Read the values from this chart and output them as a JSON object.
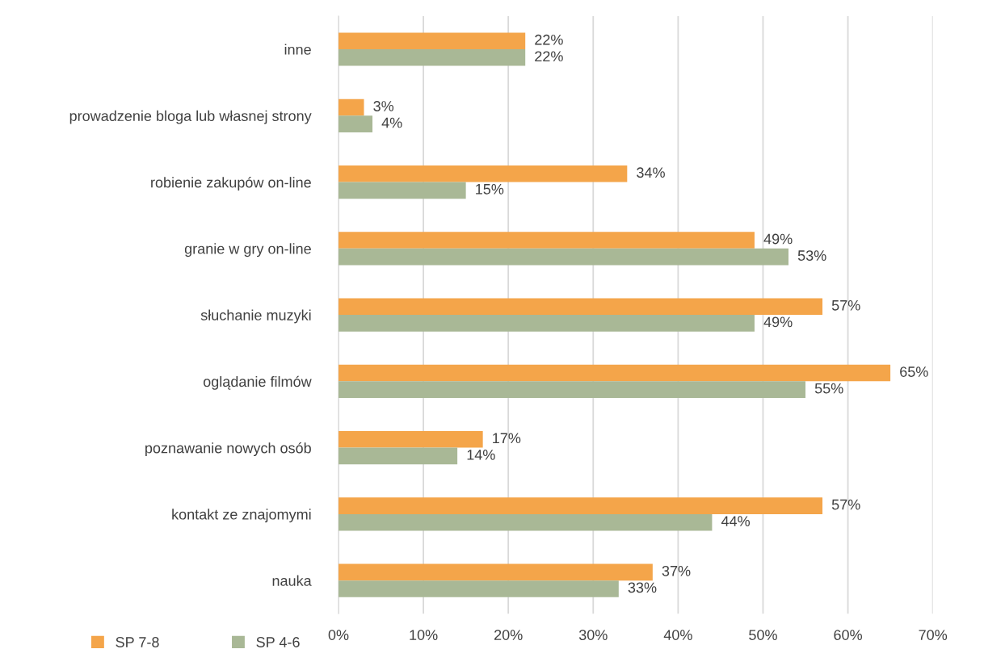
{
  "chart_data": {
    "type": "bar",
    "orientation": "horizontal",
    "categories": [
      "inne",
      "prowadzenie bloga lub własnej strony",
      "robienie zakupów on-line",
      "granie w gry on-line",
      "słuchanie muzyki",
      "oglądanie filmów",
      "poznawanie nowych osób",
      "kontakt ze znajomymi",
      "nauka"
    ],
    "series": [
      {
        "name": "SP 7-8",
        "color": "#f4a54a",
        "values": [
          22,
          3,
          34,
          49,
          57,
          65,
          17,
          57,
          37
        ],
        "value_labels": [
          "22%",
          "3%",
          "34%",
          "49%",
          "57%",
          "65%",
          "17%",
          "57%",
          "37%"
        ]
      },
      {
        "name": "SP 4-6",
        "color": "#a9b896",
        "values": [
          22,
          4,
          15,
          53,
          49,
          55,
          14,
          44,
          33
        ],
        "value_labels": [
          "22%",
          "4%",
          "15%",
          "53%",
          "49%",
          "55%",
          "14%",
          "44%",
          "33%"
        ]
      }
    ],
    "xlim": [
      0,
      70
    ],
    "xticks": [
      {
        "value": 0,
        "label": "0%"
      },
      {
        "value": 10,
        "label": "10%"
      },
      {
        "value": 20,
        "label": "20%"
      },
      {
        "value": 30,
        "label": "30%"
      },
      {
        "value": 40,
        "label": "40%"
      },
      {
        "value": 50,
        "label": "50%"
      },
      {
        "value": 60,
        "label": "60%"
      },
      {
        "value": 70,
        "label": "70%"
      }
    ],
    "grid": "x",
    "legend": "bottom left"
  }
}
